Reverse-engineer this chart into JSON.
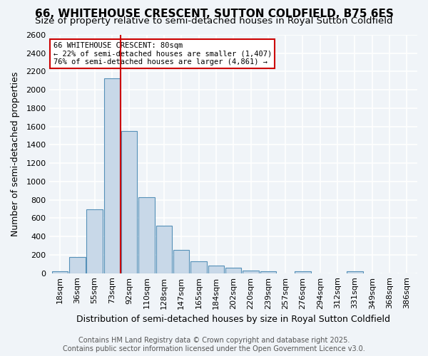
{
  "title1": "66, WHITEHOUSE CRESCENT, SUTTON COLDFIELD, B75 6ES",
  "title2": "Size of property relative to semi-detached houses in Royal Sutton Coldfield",
  "xlabel": "Distribution of semi-detached houses by size in Royal Sutton Coldfield",
  "ylabel": "Number of semi-detached properties",
  "bin_labels": [
    "18sqm",
    "36sqm",
    "55sqm",
    "73sqm",
    "92sqm",
    "110sqm",
    "128sqm",
    "147sqm",
    "165sqm",
    "184sqm",
    "202sqm",
    "220sqm",
    "239sqm",
    "257sqm",
    "276sqm",
    "294sqm",
    "312sqm",
    "331sqm",
    "349sqm",
    "368sqm",
    "386sqm"
  ],
  "bar_heights": [
    20,
    175,
    700,
    2125,
    1550,
    825,
    515,
    255,
    130,
    80,
    60,
    25,
    20,
    0,
    20,
    0,
    0,
    20,
    0,
    0,
    0
  ],
  "bar_color": "#c8d8e8",
  "bar_edge_color": "#5590b8",
  "ylim": [
    0,
    2600
  ],
  "yticks": [
    0,
    200,
    400,
    600,
    800,
    1000,
    1200,
    1400,
    1600,
    1800,
    2000,
    2200,
    2400,
    2600
  ],
  "red_line_x": 3.5,
  "annotation_title": "66 WHITEHOUSE CRESCENT: 80sqm",
  "annotation_line1": "← 22% of semi-detached houses are smaller (1,407)",
  "annotation_line2": "76% of semi-detached houses are larger (4,861) →",
  "annotation_box_color": "#ffffff",
  "annotation_box_edge": "#cc0000",
  "red_line_color": "#cc0000",
  "footer1": "Contains HM Land Registry data © Crown copyright and database right 2025.",
  "footer2": "Contains public sector information licensed under the Open Government Licence v3.0.",
  "bg_color": "#f0f4f8",
  "grid_color": "#ffffff",
  "title1_fontsize": 11,
  "title2_fontsize": 9.5,
  "axis_label_fontsize": 9,
  "tick_fontsize": 8,
  "footer_fontsize": 7
}
